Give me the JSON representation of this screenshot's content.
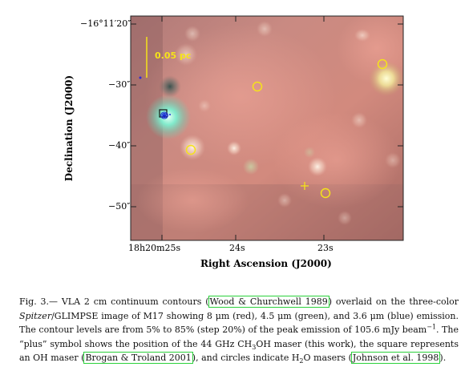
{
  "figure": {
    "y_axis_title": "Declination (J2000)",
    "x_axis_title": "Right Ascension (J2000)",
    "scale_bar_label": "0.05 pc",
    "y_ticks": [
      "−16°11′20″",
      "−30″",
      "−40″",
      "−50″"
    ],
    "x_ticks": [
      "18h20m25s",
      "24s",
      "23s"
    ],
    "colors": {
      "overlay_yellow": "#f5e31a",
      "maser_square": "#111111",
      "contour_blue": "#1a2bd6",
      "citation_box": "#2bd13b"
    },
    "markers": {
      "circles": 4,
      "plus": 1,
      "square": 1
    }
  },
  "caption": {
    "fig_label": "Fig. 3.—",
    "part1": " VLA 2 cm continuum contours (",
    "cite1": "Wood & Churchwell 1989",
    "part2": ") overlaid on the three-color ",
    "italic1": "Spitzer",
    "part3": "/GLIMPSE image of M17 showing 8 μm (red), 4.5 μm (green), and 3.6 μm (blue) emission. The contour levels are from 5% to 85% (step 20%) of the peak emission of 105.6 mJy beam",
    "sup1": "−1",
    "part4": ". The “plus” symbol shows the position of the 44 GHz CH",
    "sub1": "3",
    "part5": "OH maser (this work), the square represents an OH maser (",
    "cite2": "Brogan & Troland 2001",
    "part6": "), and circles indicate H",
    "sub2": "2",
    "part7": "O masers (",
    "cite3": "Johnson et al. 1998",
    "part8": ")."
  }
}
